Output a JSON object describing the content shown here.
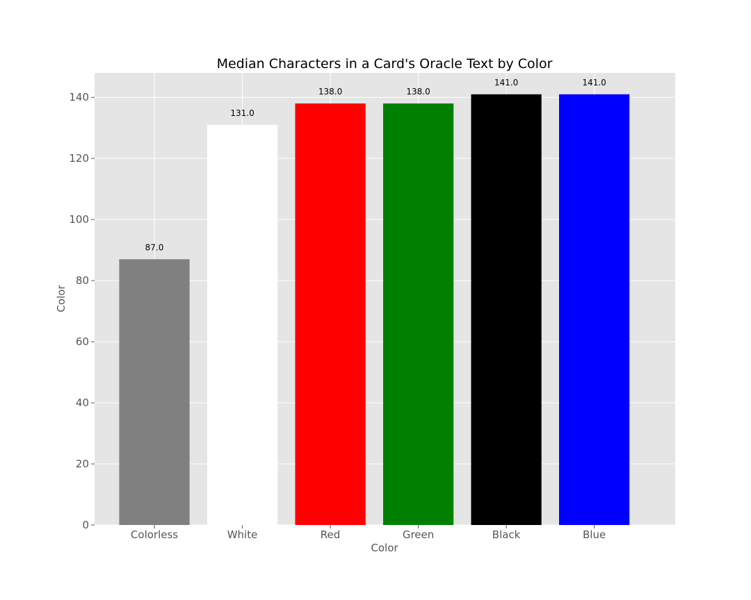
{
  "chart_data": {
    "type": "bar",
    "title": "Median Characters in a Card's Oracle Text by Color",
    "xlabel": "Color",
    "ylabel": "Color",
    "categories": [
      "Colorless",
      "White",
      "Red",
      "Green",
      "Black",
      "Blue"
    ],
    "values": [
      87.0,
      131.0,
      138.0,
      138.0,
      141.0,
      141.0
    ],
    "data_labels": [
      "87.0",
      "131.0",
      "138.0",
      "138.0",
      "141.0",
      "141.0"
    ],
    "bar_colors": [
      "#808080",
      "#ffffff",
      "#ff0000",
      "#008000",
      "#000000",
      "#0000ff"
    ],
    "ylim": [
      0,
      148
    ],
    "yticks": [
      0,
      20,
      40,
      60,
      80,
      100,
      120,
      140
    ],
    "grid": true,
    "background_color": "#e5e5e5"
  }
}
